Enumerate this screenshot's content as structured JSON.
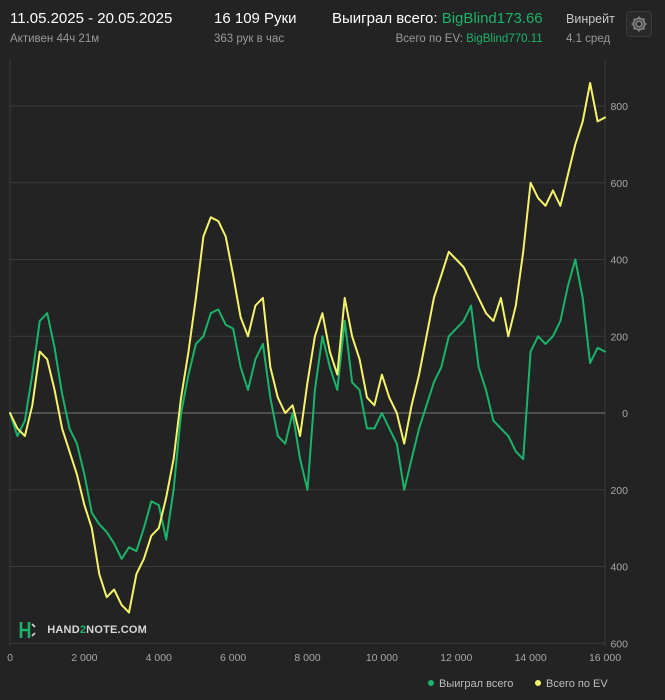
{
  "header": {
    "date_range": "11.05.2025 - 20.05.2025",
    "active_time": "Активен 44ч 21м",
    "hands": "16 109 Руки",
    "hands_per_hour": "363 рук в час",
    "won_label": "Выиграл всего:",
    "won_value": "BigBlind173.66",
    "ev_label": "Всего по EV:",
    "ev_value": "BigBlind770.11",
    "winrate_label": "Винрейт",
    "winrate_value": "4.1 сред"
  },
  "logo": {
    "part1": "HAND",
    "part2": "2",
    "part3": "NOTE.COM"
  },
  "colors": {
    "won": "#19b46a",
    "ev": "#f5f36a",
    "background": "#232323",
    "grid": "#3b3b3b"
  },
  "icons": {
    "settings": "gear-icon"
  },
  "chart_data": {
    "type": "line",
    "title": "",
    "xlabel": "",
    "ylabel": "",
    "xlim": [
      0,
      16000
    ],
    "ylim": [
      -600,
      900
    ],
    "x_ticks": [
      0,
      2000,
      4000,
      6000,
      8000,
      10000,
      12000,
      14000,
      16000
    ],
    "x_tick_labels": [
      "0",
      "2 000",
      "4 000",
      "6 000",
      "8 000",
      "10 000",
      "12 000",
      "14 000",
      "16 000"
    ],
    "y_ticks": [
      800,
      600,
      400,
      200,
      0,
      -200,
      -400,
      -600
    ],
    "y_tick_labels": [
      "800",
      "600",
      "400",
      "200",
      "0",
      "200",
      "400",
      "600"
    ],
    "grid": true,
    "legend": "bottom-right",
    "series": [
      {
        "name": "Выиграл всего",
        "color": "#19b46a",
        "x": [
          0,
          200,
          400,
          600,
          800,
          1000,
          1200,
          1400,
          1600,
          1800,
          2000,
          2200,
          2400,
          2600,
          2800,
          3000,
          3200,
          3400,
          3600,
          3800,
          4000,
          4200,
          4400,
          4600,
          4800,
          5000,
          5200,
          5400,
          5600,
          5800,
          6000,
          6200,
          6400,
          6600,
          6800,
          7000,
          7200,
          7400,
          7600,
          7800,
          8000,
          8200,
          8400,
          8600,
          8800,
          9000,
          9200,
          9400,
          9600,
          9800,
          10000,
          10200,
          10400,
          10600,
          10800,
          11000,
          11200,
          11400,
          11600,
          11800,
          12000,
          12200,
          12400,
          12600,
          12800,
          13000,
          13200,
          13400,
          13600,
          13800,
          14000,
          14200,
          14400,
          14600,
          14800,
          15000,
          15200,
          15400,
          15600,
          15800,
          16000
        ],
        "values": [
          0,
          -60,
          -20,
          100,
          240,
          260,
          170,
          50,
          -40,
          -80,
          -160,
          -260,
          -290,
          -310,
          -340,
          -380,
          -350,
          -360,
          -300,
          -230,
          -240,
          -330,
          -200,
          0,
          100,
          180,
          200,
          260,
          270,
          230,
          220,
          120,
          60,
          140,
          180,
          40,
          -60,
          -80,
          0,
          -120,
          -200,
          60,
          200,
          120,
          60,
          240,
          80,
          60,
          -40,
          -40,
          0,
          -40,
          -80,
          -200,
          -120,
          -40,
          20,
          80,
          120,
          200,
          220,
          240,
          280,
          120,
          60,
          -20,
          -40,
          -60,
          -100,
          -120,
          160,
          200,
          180,
          200,
          240,
          330,
          400,
          300,
          130,
          170,
          160
        ]
      },
      {
        "name": "Всего по EV",
        "color": "#f5f36a",
        "x": [
          0,
          200,
          400,
          600,
          800,
          1000,
          1200,
          1400,
          1600,
          1800,
          2000,
          2200,
          2400,
          2600,
          2800,
          3000,
          3200,
          3400,
          3600,
          3800,
          4000,
          4200,
          4400,
          4600,
          4800,
          5000,
          5200,
          5400,
          5600,
          5800,
          6000,
          6200,
          6400,
          6600,
          6800,
          7000,
          7200,
          7400,
          7600,
          7800,
          8000,
          8200,
          8400,
          8600,
          8800,
          9000,
          9200,
          9400,
          9600,
          9800,
          10000,
          10200,
          10400,
          10600,
          10800,
          11000,
          11200,
          11400,
          11600,
          11800,
          12000,
          12200,
          12400,
          12600,
          12800,
          13000,
          13200,
          13400,
          13600,
          13800,
          14000,
          14200,
          14400,
          14600,
          14800,
          15000,
          15200,
          15400,
          15600,
          15800,
          16000
        ],
        "values": [
          0,
          -40,
          -60,
          20,
          160,
          140,
          60,
          -40,
          -100,
          -160,
          -240,
          -300,
          -420,
          -480,
          -460,
          -500,
          -520,
          -420,
          -380,
          -320,
          -300,
          -220,
          -120,
          40,
          160,
          300,
          460,
          510,
          500,
          460,
          360,
          250,
          200,
          280,
          300,
          120,
          40,
          0,
          20,
          -60,
          80,
          200,
          260,
          160,
          100,
          300,
          200,
          140,
          40,
          20,
          100,
          40,
          0,
          -80,
          20,
          100,
          200,
          300,
          360,
          420,
          400,
          380,
          340,
          300,
          260,
          240,
          300,
          200,
          280,
          420,
          600,
          560,
          540,
          580,
          540,
          620,
          700,
          760,
          860,
          760,
          770
        ]
      }
    ]
  }
}
